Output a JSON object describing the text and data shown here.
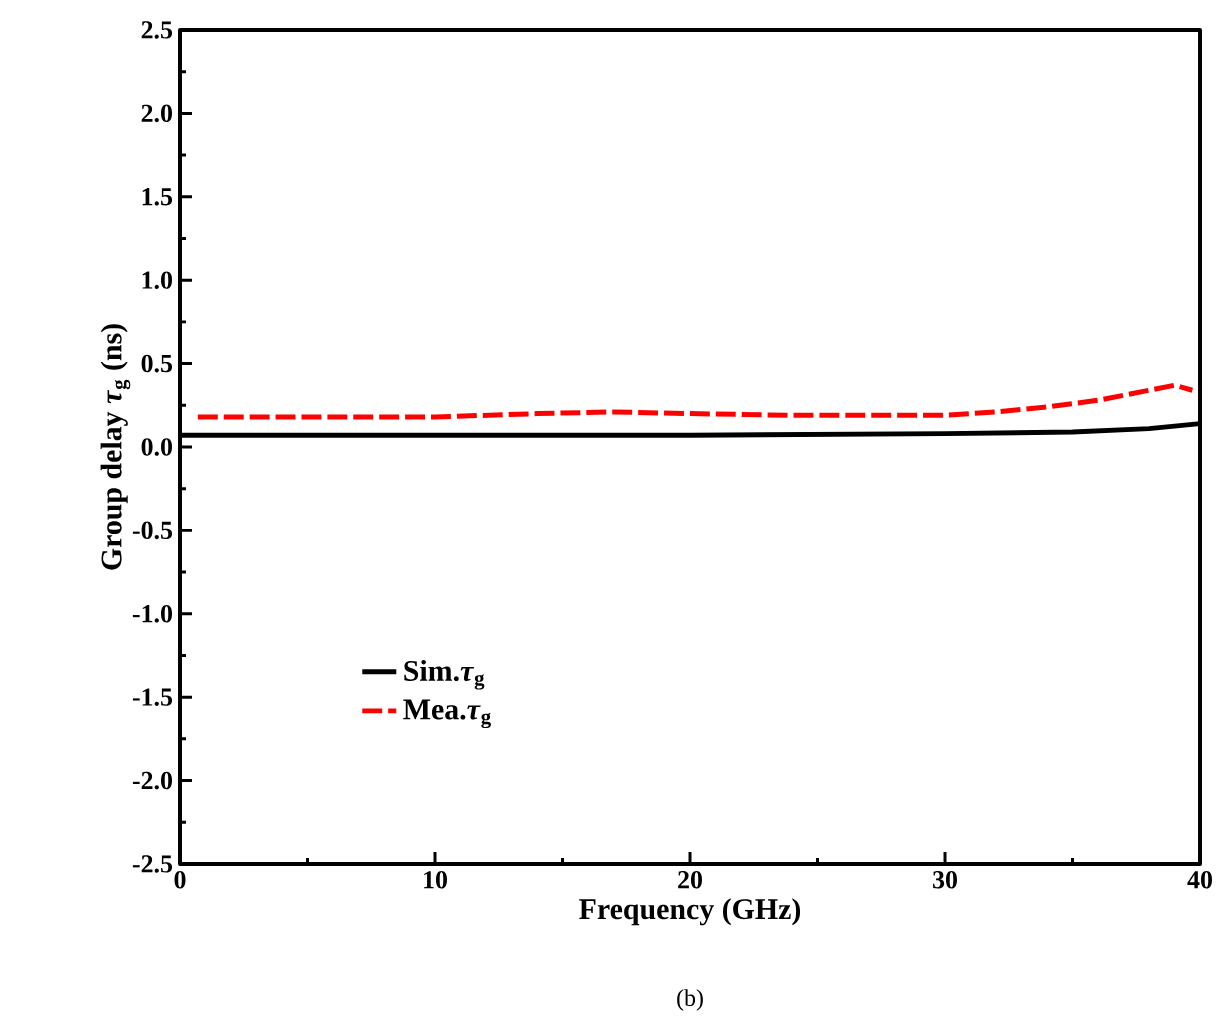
{
  "chart_data": {
    "type": "line",
    "xlabel": "Frequency (GHz)",
    "ylabel": "Group delay *τ*$_{g}$ (ns)",
    "annotations": [
      "(b)"
    ],
    "xlim": [
      0,
      40
    ],
    "xticks": [
      0,
      10,
      20,
      30,
      40
    ],
    "ylim": [
      -2.5,
      2.5
    ],
    "yticks": [
      -2.5,
      {
        "value": -2,
        "label": "-2.0"
      },
      -1.5,
      {
        "value": -1,
        "label": "-1.0"
      },
      -0.5,
      {
        "value": 0,
        "label": "0.0"
      },
      0.5,
      {
        "value": 1,
        "label": "1.0"
      },
      1.5,
      {
        "value": 2,
        "label": "2.0"
      },
      2.5
    ],
    "legend": "bottom left",
    "marker": "none",
    "series": [
      {
        "name": "Sim.*τ*$_{g}$",
        "color": "#000000",
        "line_style": "solid",
        "x": [
          0,
          10,
          20,
          30,
          35,
          38,
          40
        ],
        "values": [
          0.07,
          0.07,
          0.07,
          0.08,
          0.09,
          0.11,
          0.14
        ]
      },
      {
        "name": "Mea.*τ*$_{g}$",
        "color": "#ff0000",
        "line_style": "dashed",
        "x": [
          0.7,
          5,
          10,
          14,
          17,
          20,
          24,
          28,
          30,
          32,
          34,
          36,
          38,
          39,
          39.7
        ],
        "values": [
          0.18,
          0.18,
          0.18,
          0.2,
          0.21,
          0.2,
          0.19,
          0.19,
          0.19,
          0.21,
          0.24,
          0.28,
          0.34,
          0.37,
          0.34
        ]
      }
    ]
  }
}
